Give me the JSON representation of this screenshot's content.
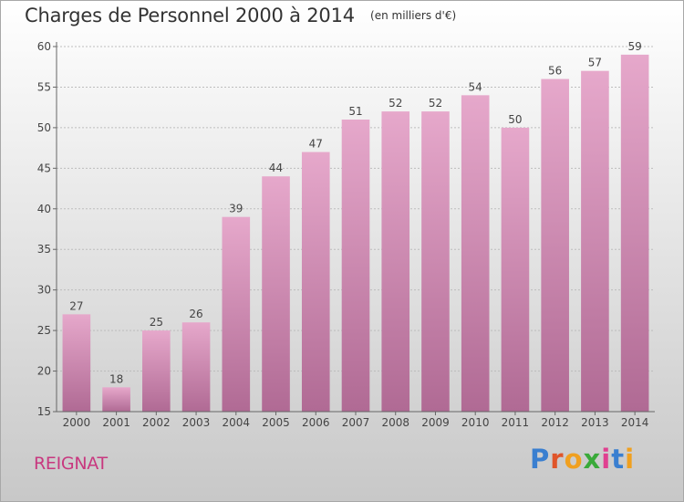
{
  "header": {
    "title": "Charges de Personnel 2000 à 2014",
    "unit": "(en milliers d'€)"
  },
  "footer": {
    "commune": "REIGNAT",
    "logo_letters": [
      "P",
      "r",
      "o",
      "x",
      "i",
      "t",
      "i"
    ],
    "logo_colors": [
      "#3a7fd0",
      "#e0552a",
      "#f0a020",
      "#3aaa3a",
      "#e04090",
      "#3a7fd0",
      "#f0a020"
    ]
  },
  "chart_data": {
    "type": "bar",
    "categories": [
      "2000",
      "2001",
      "2002",
      "2003",
      "2004",
      "2005",
      "2006",
      "2007",
      "2008",
      "2009",
      "2010",
      "2011",
      "2012",
      "2013",
      "2014"
    ],
    "values": [
      27,
      18,
      25,
      26,
      39,
      44,
      47,
      51,
      52,
      52,
      54,
      50,
      56,
      57,
      59
    ],
    "ylim": [
      15,
      60
    ],
    "yticks": [
      15,
      20,
      25,
      30,
      35,
      40,
      45,
      50,
      55,
      60
    ],
    "grid": true,
    "bar_color_top": "#e6a8cb",
    "bar_color_bottom": "#b06a94"
  }
}
